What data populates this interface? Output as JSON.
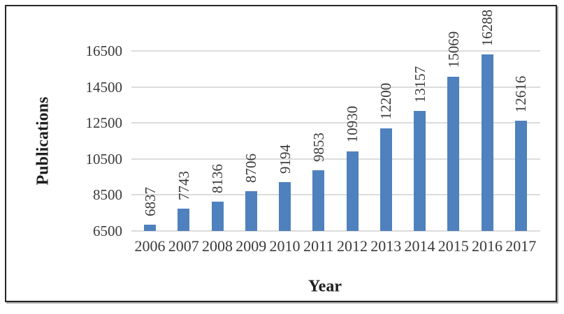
{
  "chart_data": {
    "type": "bar",
    "categories": [
      "2006",
      "2007",
      "2008",
      "2009",
      "2010",
      "2011",
      "2012",
      "2013",
      "2014",
      "2015",
      "2016",
      "2017"
    ],
    "values": [
      6837,
      7743,
      8136,
      8706,
      9194,
      9853,
      10930,
      12200,
      13157,
      15069,
      16288,
      12616
    ],
    "xlabel": "Year",
    "ylabel": "Publications",
    "yticks": [
      6500,
      8500,
      10500,
      12500,
      14500,
      16500
    ],
    "ylim": [
      6500,
      16500
    ],
    "grid": "horizontal",
    "legend": "none",
    "value_labels": "rotated-90-above-bars",
    "bar_color": "#4e81bd",
    "gridline_color": "#dcdcdc",
    "tick_label_color": "#3a3a3a",
    "value_label_color": "#3a3a3a",
    "axis_title_color": "#1f1f1f",
    "frame_border_color": "#262626",
    "background_color": "#ffffff"
  }
}
